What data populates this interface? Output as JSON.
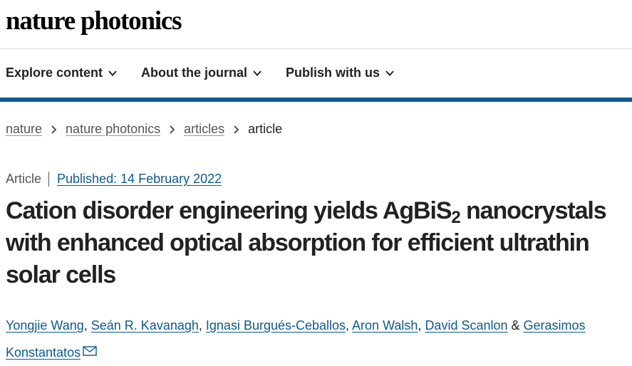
{
  "header": {
    "logo": "nature photonics"
  },
  "nav": {
    "items": [
      "Explore content",
      "About the journal",
      "Publish with us"
    ]
  },
  "breadcrumb": {
    "items": [
      "nature",
      "nature photonics",
      "articles",
      "article"
    ]
  },
  "article": {
    "type": "Article",
    "published": "Published: 14 February 2022",
    "title_parts": [
      "Cation disorder engineering yields AgBiS",
      "2",
      " nanocrystals with enhanced optical absorption for efficient ultrathin solar cells"
    ],
    "authors": [
      "Yongjie Wang",
      "Seán R. Kavanagh",
      "Ignasi Burgués-Ceballos",
      "Aron Walsh",
      "David Scanlon",
      "Gerasimos Konstantatos"
    ],
    "separators": [
      ", ",
      ", ",
      ", ",
      ", ",
      " & "
    ]
  }
}
